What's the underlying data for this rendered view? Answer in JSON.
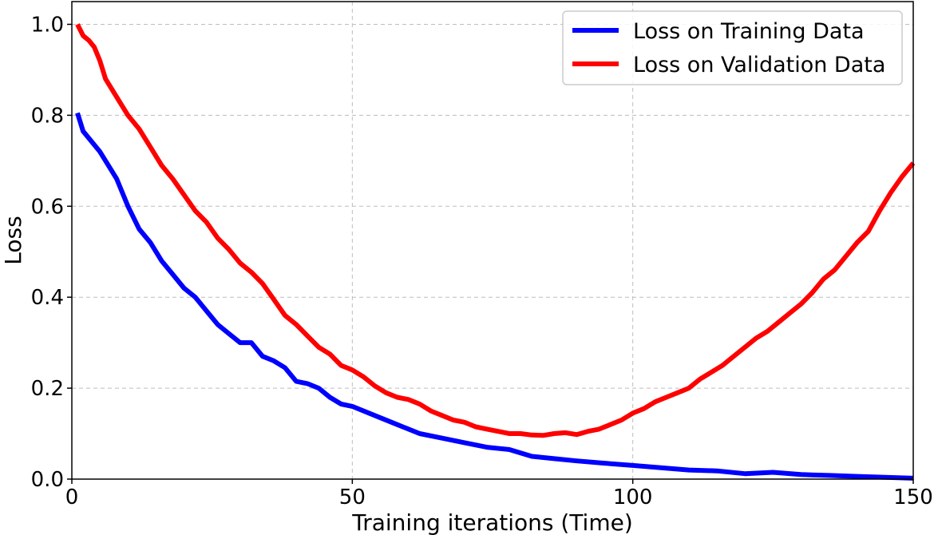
{
  "chart_data": {
    "type": "line",
    "xlabel": "Training iterations (Time)",
    "ylabel": "Loss",
    "xlim": [
      0,
      150
    ],
    "ylim": [
      0,
      1.05
    ],
    "xticks": [
      0,
      50,
      100,
      150
    ],
    "yticks": [
      0.0,
      0.2,
      0.4,
      0.6,
      0.8,
      1.0
    ],
    "xtick_labels": [
      "0",
      "50",
      "100",
      "150"
    ],
    "ytick_labels": [
      "0.0",
      "0.2",
      "0.4",
      "0.6",
      "0.8",
      "1.0"
    ],
    "grid": true,
    "legend": "top-right",
    "series": [
      {
        "name": "Loss on Training Data",
        "color": "#0000ff",
        "x": [
          1,
          2,
          5,
          7,
          8,
          10,
          12,
          14,
          16,
          18,
          20,
          22,
          24,
          26,
          28,
          30,
          32,
          34,
          36,
          38,
          40,
          42,
          44,
          46,
          48,
          50,
          54,
          58,
          62,
          66,
          70,
          74,
          78,
          82,
          86,
          90,
          95,
          100,
          105,
          110,
          115,
          120,
          125,
          130,
          135,
          140,
          145,
          150
        ],
        "y": [
          0.805,
          0.765,
          0.72,
          0.68,
          0.66,
          0.6,
          0.55,
          0.52,
          0.48,
          0.45,
          0.42,
          0.4,
          0.37,
          0.34,
          0.32,
          0.3,
          0.3,
          0.27,
          0.26,
          0.245,
          0.215,
          0.21,
          0.2,
          0.18,
          0.165,
          0.16,
          0.14,
          0.12,
          0.1,
          0.09,
          0.08,
          0.07,
          0.065,
          0.05,
          0.045,
          0.04,
          0.035,
          0.03,
          0.025,
          0.02,
          0.018,
          0.012,
          0.015,
          0.01,
          0.008,
          0.006,
          0.004,
          0.002
        ]
      },
      {
        "name": "Loss on Validation Data",
        "color": "#ff0000",
        "x": [
          1,
          2,
          3,
          4,
          5,
          6,
          8,
          10,
          12,
          14,
          16,
          18,
          20,
          22,
          24,
          26,
          28,
          30,
          32,
          34,
          36,
          38,
          40,
          42,
          44,
          46,
          48,
          50,
          52,
          54,
          56,
          58,
          60,
          62,
          64,
          66,
          68,
          70,
          72,
          74,
          76,
          78,
          80,
          82,
          84,
          86,
          88,
          90,
          92,
          94,
          96,
          98,
          100,
          102,
          104,
          106,
          108,
          110,
          112,
          114,
          116,
          118,
          120,
          122,
          124,
          126,
          128,
          130,
          132,
          134,
          136,
          138,
          140,
          142,
          144,
          146,
          148,
          150
        ],
        "y": [
          1.0,
          0.975,
          0.965,
          0.95,
          0.92,
          0.88,
          0.84,
          0.8,
          0.77,
          0.73,
          0.69,
          0.66,
          0.625,
          0.59,
          0.565,
          0.53,
          0.505,
          0.475,
          0.455,
          0.43,
          0.395,
          0.36,
          0.34,
          0.315,
          0.29,
          0.275,
          0.25,
          0.24,
          0.225,
          0.205,
          0.19,
          0.18,
          0.175,
          0.165,
          0.15,
          0.14,
          0.13,
          0.125,
          0.115,
          0.11,
          0.105,
          0.1,
          0.1,
          0.097,
          0.096,
          0.1,
          0.102,
          0.098,
          0.105,
          0.11,
          0.12,
          0.13,
          0.145,
          0.155,
          0.17,
          0.18,
          0.19,
          0.2,
          0.22,
          0.235,
          0.25,
          0.27,
          0.29,
          0.31,
          0.325,
          0.345,
          0.365,
          0.385,
          0.41,
          0.44,
          0.46,
          0.49,
          0.52,
          0.545,
          0.59,
          0.63,
          0.665,
          0.695
        ]
      }
    ]
  }
}
